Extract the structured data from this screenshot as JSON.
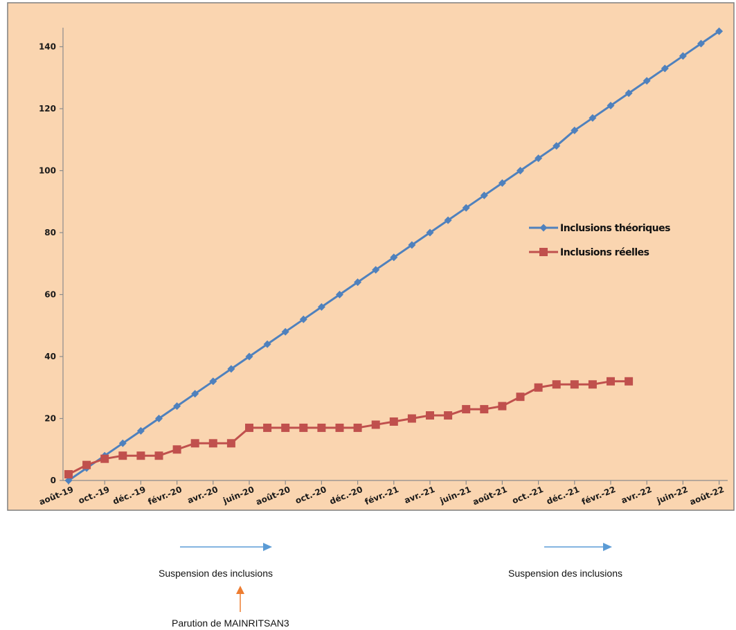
{
  "chart_data": {
    "type": "line",
    "ylim": [
      0,
      146
    ],
    "y_ticks": [
      0,
      20,
      40,
      60,
      80,
      100,
      120,
      140
    ],
    "x_tick_labels": [
      "août-19",
      "oct.-19",
      "déc.-19",
      "févr.-20",
      "avr.-20",
      "juin-20",
      "août-20",
      "oct.-20",
      "déc.-20",
      "févr.-21",
      "avr.-21",
      "juin-21",
      "août-21",
      "oct.-21",
      "déc.-21",
      "févr.-22",
      "avr.-22",
      "juin-22",
      "août-22"
    ],
    "x_tick_count": 19,
    "legend_position": "right-middle",
    "series": [
      {
        "name": "Inclusions théoriques",
        "color": "#4f81bd",
        "marker": "diamond",
        "x": [
          0,
          0.5,
          1,
          1.5,
          2,
          2.5,
          3,
          3.5,
          4,
          4.5,
          5,
          5.5,
          6,
          6.5,
          7,
          7.5,
          8,
          8.5,
          9,
          9.5,
          10,
          10.5,
          11,
          11.5,
          12,
          12.5,
          13,
          13.5,
          14,
          14.5,
          15,
          15.5,
          16,
          16.5,
          17,
          17.5,
          18
        ],
        "values": [
          0,
          4,
          8,
          12,
          16,
          20,
          24,
          28,
          32,
          36,
          40,
          44,
          48,
          52,
          56,
          60,
          64,
          68,
          72,
          76,
          80,
          84,
          88,
          92,
          96,
          100,
          104,
          108,
          113,
          117,
          121,
          125,
          129,
          133,
          137,
          141,
          145
        ]
      },
      {
        "name": "Inclusions réelles",
        "color": "#c0504d",
        "marker": "square",
        "x": [
          0,
          0.5,
          1,
          1.5,
          2,
          2.5,
          3,
          3.5,
          4,
          4.5,
          5,
          5.5,
          6,
          6.5,
          7,
          7.5,
          8,
          8.5,
          9,
          9.5,
          10,
          10.5,
          11,
          11.5,
          12,
          12.5,
          13,
          13.5,
          14,
          14.5,
          15,
          15.5
        ],
        "values": [
          2,
          5,
          7,
          8,
          8,
          8,
          10,
          12,
          12,
          12,
          17,
          17,
          17,
          17,
          17,
          17,
          17,
          18,
          19,
          20,
          21,
          21,
          23,
          23,
          24,
          27,
          30,
          31,
          31,
          31,
          32,
          32
        ]
      }
    ]
  },
  "annotations": {
    "suspension_1_label": "Suspension des inclusions",
    "suspension_2_label": "Suspension des inclusions",
    "parution_label": "Parution de MAINRITSAN3",
    "suspension_arrow_color": "#5b9bd5",
    "parution_arrow_color": "#ed7d31"
  },
  "colors": {
    "plot_background": "#fad5b0",
    "axis": "#8c8c8c",
    "frame": "#7f7f7f"
  }
}
